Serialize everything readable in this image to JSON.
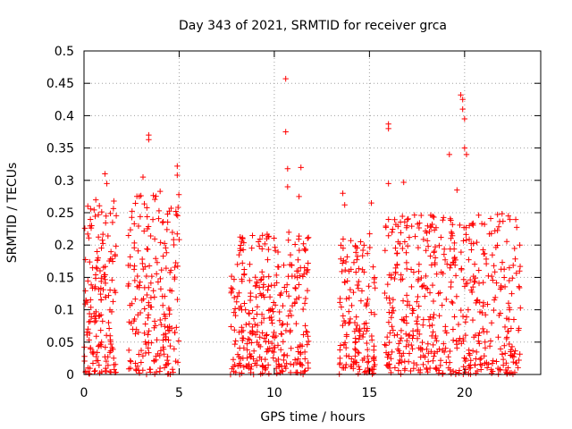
{
  "chart_data": {
    "type": "scatter",
    "title": "Day 343 of 2021, SRMTID for receiver grca",
    "xlabel": "GPS time / hours",
    "ylabel": "SRMTID / TECUs",
    "xlim": [
      0,
      24
    ],
    "ylim": [
      0,
      0.5
    ],
    "xticks": [
      0,
      5,
      10,
      15,
      20
    ],
    "yticks": [
      0,
      0.05,
      0.1,
      0.15,
      0.2,
      0.25,
      0.3,
      0.35,
      0.4,
      0.45,
      0.5
    ],
    "xtick_labels": [
      "0",
      "5",
      "10",
      "15",
      "20"
    ],
    "ytick_labels": [
      "0",
      "0.05",
      "0.1",
      "0.15",
      "0.2",
      "0.25",
      "0.3",
      "0.35",
      "0.4",
      "0.45",
      "0.5"
    ],
    "grid": true,
    "marker": "+",
    "color": "#ff0000",
    "series": [
      {
        "name": "SRMTID",
        "segments": [
          {
            "x_range": [
              0.0,
              1.7
            ],
            "y_typical": [
              0.0,
              0.27
            ],
            "density": 160
          },
          {
            "x_range": [
              2.3,
              5.0
            ],
            "y_typical": [
              0.0,
              0.28
            ],
            "density": 210
          },
          {
            "x_range": [
              7.7,
              11.8
            ],
            "y_typical": [
              0.0,
              0.22
            ],
            "density": 330
          },
          {
            "x_range": [
              13.4,
              15.3
            ],
            "y_typical": [
              0.0,
              0.22
            ],
            "density": 150
          },
          {
            "x_range": [
              15.8,
              23.0
            ],
            "y_typical": [
              0.0,
              0.25
            ],
            "density": 520
          }
        ],
        "notable_points": [
          {
            "x": 0.2,
            "y": 0.26
          },
          {
            "x": 0.4,
            "y": 0.23
          },
          {
            "x": 1.1,
            "y": 0.31
          },
          {
            "x": 1.2,
            "y": 0.295
          },
          {
            "x": 1.5,
            "y": 0.235
          },
          {
            "x": 3.1,
            "y": 0.305
          },
          {
            "x": 3.4,
            "y": 0.37
          },
          {
            "x": 3.4,
            "y": 0.363
          },
          {
            "x": 4.0,
            "y": 0.283
          },
          {
            "x": 4.9,
            "y": 0.322
          },
          {
            "x": 4.9,
            "y": 0.308
          },
          {
            "x": 7.7,
            "y": 0.0
          },
          {
            "x": 10.6,
            "y": 0.457
          },
          {
            "x": 10.6,
            "y": 0.375
          },
          {
            "x": 10.7,
            "y": 0.318
          },
          {
            "x": 10.7,
            "y": 0.29
          },
          {
            "x": 11.4,
            "y": 0.32
          },
          {
            "x": 11.3,
            "y": 0.275
          },
          {
            "x": 13.6,
            "y": 0.28
          },
          {
            "x": 13.7,
            "y": 0.262
          },
          {
            "x": 15.1,
            "y": 0.265
          },
          {
            "x": 16.0,
            "y": 0.387
          },
          {
            "x": 16.0,
            "y": 0.38
          },
          {
            "x": 16.0,
            "y": 0.295
          },
          {
            "x": 16.8,
            "y": 0.297
          },
          {
            "x": 19.8,
            "y": 0.432
          },
          {
            "x": 19.9,
            "y": 0.425
          },
          {
            "x": 19.9,
            "y": 0.41
          },
          {
            "x": 20.0,
            "y": 0.395
          },
          {
            "x": 20.0,
            "y": 0.35
          },
          {
            "x": 20.1,
            "y": 0.34
          },
          {
            "x": 19.6,
            "y": 0.285
          },
          {
            "x": 19.2,
            "y": 0.34
          },
          {
            "x": 22.3,
            "y": 0.245
          },
          {
            "x": 22.9,
            "y": 0.2
          }
        ]
      }
    ]
  }
}
